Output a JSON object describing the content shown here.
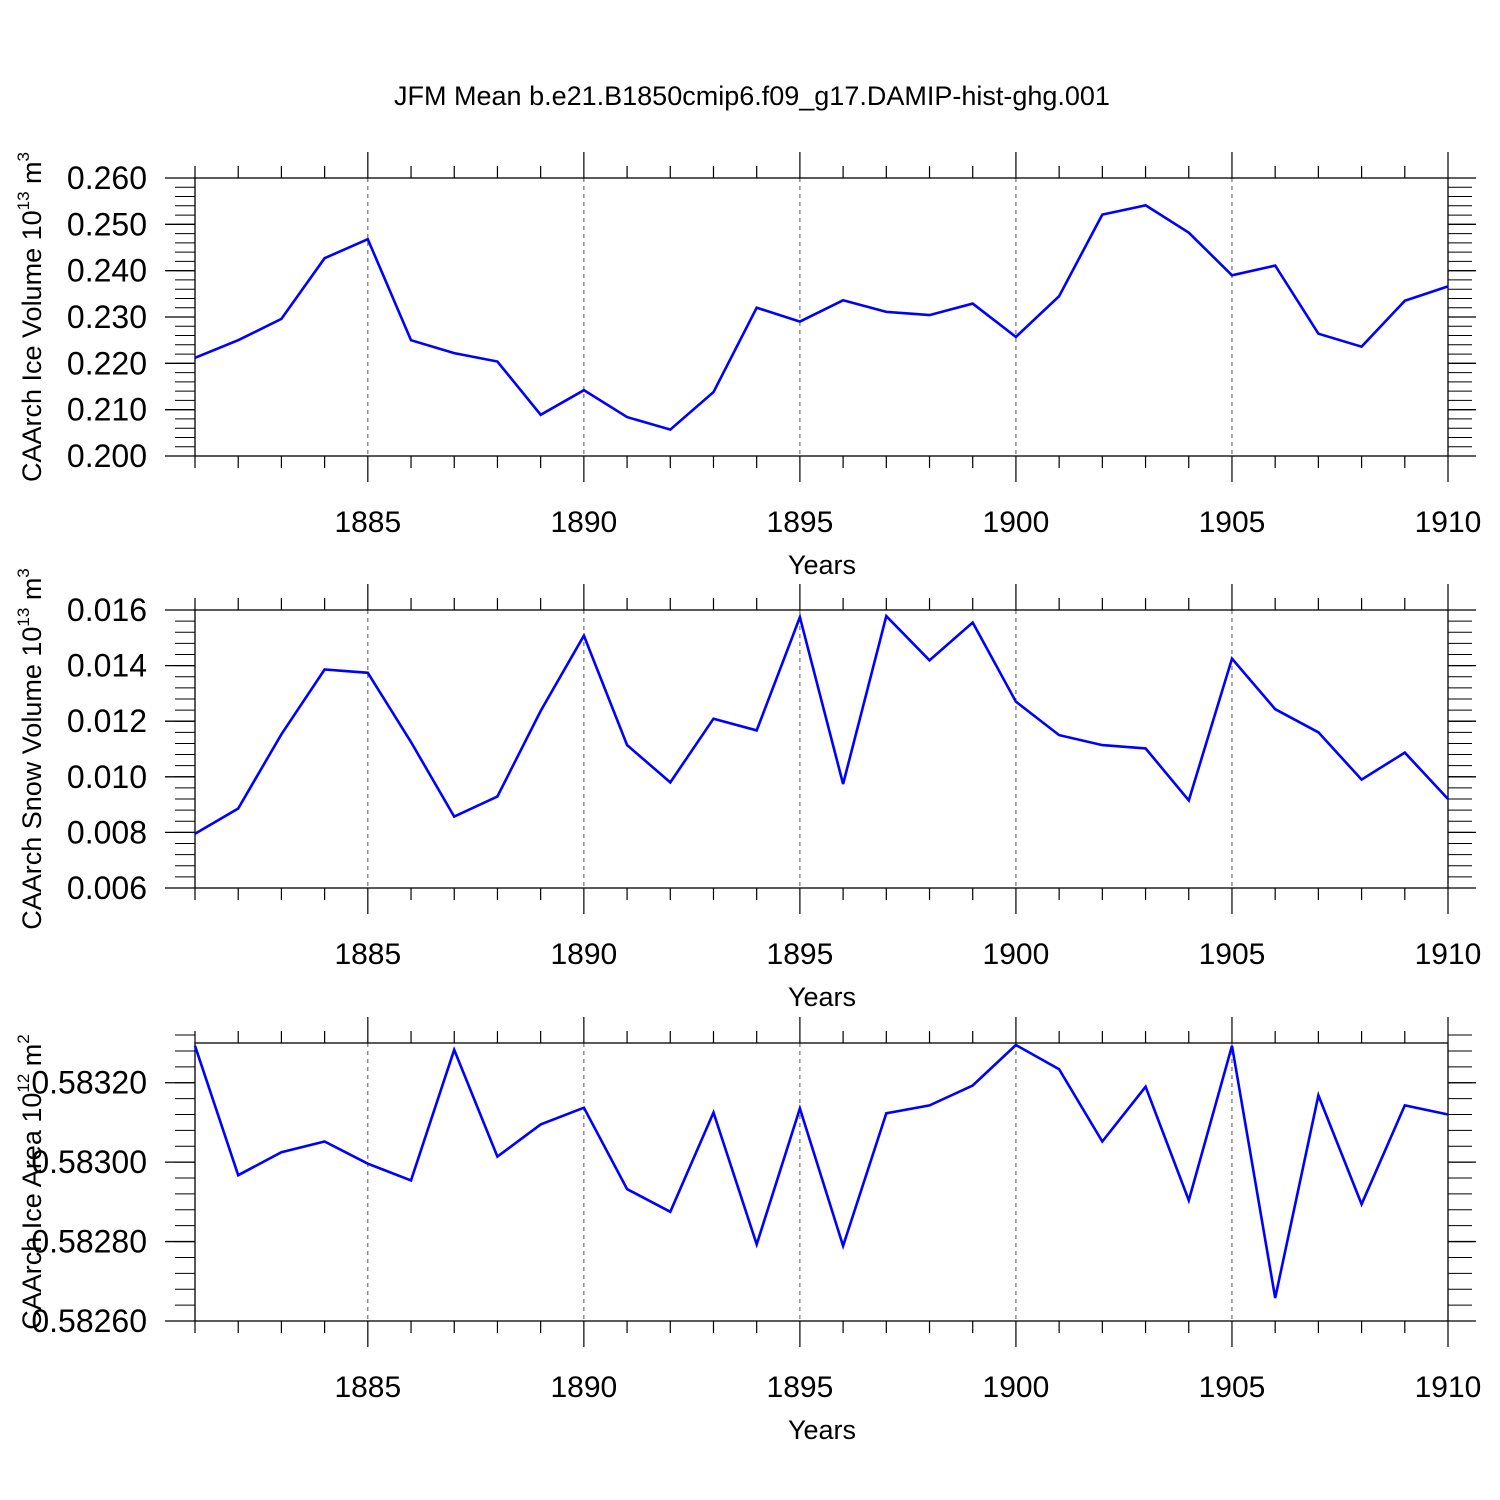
{
  "title": "JFM Mean b.e21.B1850cmip6.f09_g17.DAMIP-hist-ghg.001",
  "colors": {
    "line": "#0000ff",
    "axis": "#000000",
    "grid": "#555555",
    "background": "#ffffff"
  },
  "chart_data": [
    {
      "type": "line",
      "ylabel": "CAArch Ice Volume 10",
      "ylabel_sup": "13",
      "ylabel_unit": " m",
      "ylabel_unit_sup": "3",
      "xlabel": "Years",
      "xlim": [
        1881,
        1910
      ],
      "ylim": [
        0.2,
        0.26
      ],
      "xticks": [
        "1885",
        "1890",
        "1895",
        "1900",
        "1905",
        "1910"
      ],
      "yticks": [
        "0.200",
        "0.210",
        "0.220",
        "0.230",
        "0.240",
        "0.250",
        "0.260"
      ],
      "x": [
        1881,
        1882,
        1883,
        1884,
        1885,
        1886,
        1887,
        1888,
        1889,
        1890,
        1891,
        1892,
        1893,
        1894,
        1895,
        1896,
        1897,
        1898,
        1899,
        1900,
        1901,
        1902,
        1903,
        1904,
        1905,
        1906,
        1907,
        1908,
        1909,
        1910
      ],
      "values": [
        0.2212,
        0.225,
        0.2296,
        0.2427,
        0.2468,
        0.225,
        0.2222,
        0.2204,
        0.2089,
        0.2142,
        0.2084,
        0.2057,
        0.2138,
        0.232,
        0.229,
        0.2336,
        0.2311,
        0.2304,
        0.2329,
        0.2257,
        0.2345,
        0.2521,
        0.2541,
        0.2482,
        0.239,
        0.2411,
        0.2264,
        0.2236,
        0.2335,
        0.2366
      ]
    },
    {
      "type": "line",
      "ylabel": "CAArch Snow Volume 10",
      "ylabel_sup": "13",
      "ylabel_unit": " m",
      "ylabel_unit_sup": "3",
      "xlabel": "Years",
      "xlim": [
        1881,
        1910
      ],
      "ylim": [
        0.006,
        0.016
      ],
      "xticks": [
        "1885",
        "1890",
        "1895",
        "1900",
        "1905",
        "1910"
      ],
      "yticks": [
        "0.006",
        "0.008",
        "0.010",
        "0.012",
        "0.014",
        "0.016"
      ],
      "x": [
        1881,
        1882,
        1883,
        1884,
        1885,
        1886,
        1887,
        1888,
        1889,
        1890,
        1891,
        1892,
        1893,
        1894,
        1895,
        1896,
        1897,
        1898,
        1899,
        1900,
        1901,
        1902,
        1903,
        1904,
        1905,
        1906,
        1907,
        1908,
        1909,
        1910
      ],
      "values": [
        0.00795,
        0.00886,
        0.01153,
        0.01386,
        0.01374,
        0.01125,
        0.00857,
        0.00929,
        0.01237,
        0.01508,
        0.01114,
        0.0098,
        0.01209,
        0.01167,
        0.01574,
        0.00974,
        0.01578,
        0.01419,
        0.01555,
        0.0127,
        0.0115,
        0.01114,
        0.01102,
        0.00915,
        0.01425,
        0.01243,
        0.0116,
        0.0099,
        0.01087,
        0.0092
      ]
    },
    {
      "type": "line",
      "ylabel": "CAArch Ice Area 10",
      "ylabel_sup": "12",
      "ylabel_unit": " m",
      "ylabel_unit_sup": "2",
      "xlabel": "Years",
      "xlim": [
        1881,
        1910
      ],
      "ylim": [
        0.5826,
        0.5833
      ],
      "xticks": [
        "1885",
        "1890",
        "1895",
        "1900",
        "1905",
        "1910"
      ],
      "yticks": [
        "0.58260",
        "0.58280",
        "0.58300",
        "0.58320"
      ],
      "x": [
        1881,
        1882,
        1883,
        1884,
        1885,
        1886,
        1887,
        1888,
        1889,
        1890,
        1891,
        1892,
        1893,
        1894,
        1895,
        1896,
        1897,
        1898,
        1899,
        1900,
        1901,
        1902,
        1903,
        1904,
        1905,
        1906,
        1907,
        1908,
        1909,
        1910
      ],
      "values": [
        0.583293,
        0.582967,
        0.583025,
        0.583052,
        0.582996,
        0.582954,
        0.583283,
        0.583014,
        0.583095,
        0.583137,
        0.582932,
        0.582875,
        0.583125,
        0.582793,
        0.583135,
        0.582789,
        0.583123,
        0.583143,
        0.583193,
        0.583295,
        0.583234,
        0.583052,
        0.58319,
        0.582904,
        0.583293,
        0.582658,
        0.583168,
        0.582894,
        0.583143,
        0.58312
      ]
    }
  ]
}
